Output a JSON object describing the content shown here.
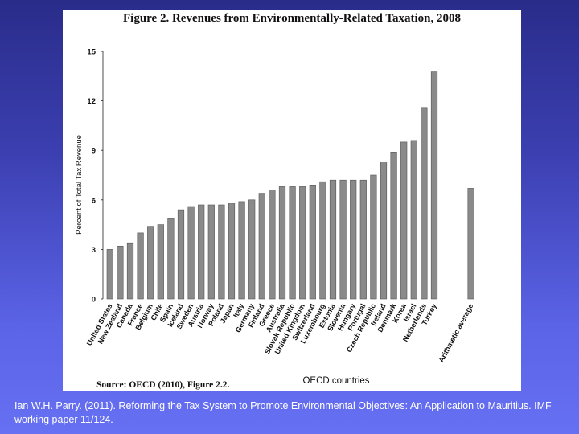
{
  "slide": {
    "citation": "Ian W.H. Parry. (2011). Reforming the Tax System to Promote Environmental Objectives: An Application to Mauritius. IMF working paper 11/124."
  },
  "chart_data": {
    "type": "bar",
    "title": "Figure 2. Revenues from Environmentally-Related Taxation, 2008",
    "xlabel": "OECD countries",
    "ylabel": "Percent of Total Tax Revenue",
    "source": "Source: OECD (2010), Figure 2.2.",
    "ylim": [
      0,
      15
    ],
    "yticks": [
      0,
      3,
      6,
      9,
      12,
      15
    ],
    "grid": false,
    "bar_color": "#8a8a8a",
    "categories": [
      "United States",
      "New Zealand",
      "Canada",
      "France",
      "Belgium",
      "Chile",
      "Spain",
      "Iceland",
      "Sweden",
      "Austria",
      "Norway",
      "Poland",
      "Japan",
      "Italy",
      "Germany",
      "Finland",
      "Greece",
      "Australia",
      "Slovak Republic",
      "United Kingdom",
      "Switzerland",
      "Luxembourg",
      "Estonia",
      "Slovenia",
      "Hungary",
      "Portugal",
      "Czech Republic",
      "Ireland",
      "Denmark",
      "Korea",
      "Israel",
      "Netherlands",
      "Turkey",
      "Arithmetic average"
    ],
    "values": [
      3.0,
      3.2,
      3.4,
      4.0,
      4.4,
      4.5,
      4.9,
      5.4,
      5.6,
      5.7,
      5.7,
      5.7,
      5.8,
      5.9,
      6.0,
      6.4,
      6.6,
      6.8,
      6.8,
      6.8,
      6.9,
      7.1,
      7.2,
      7.2,
      7.2,
      7.2,
      7.5,
      8.3,
      8.9,
      9.5,
      9.6,
      11.6,
      13.8,
      6.7
    ]
  }
}
